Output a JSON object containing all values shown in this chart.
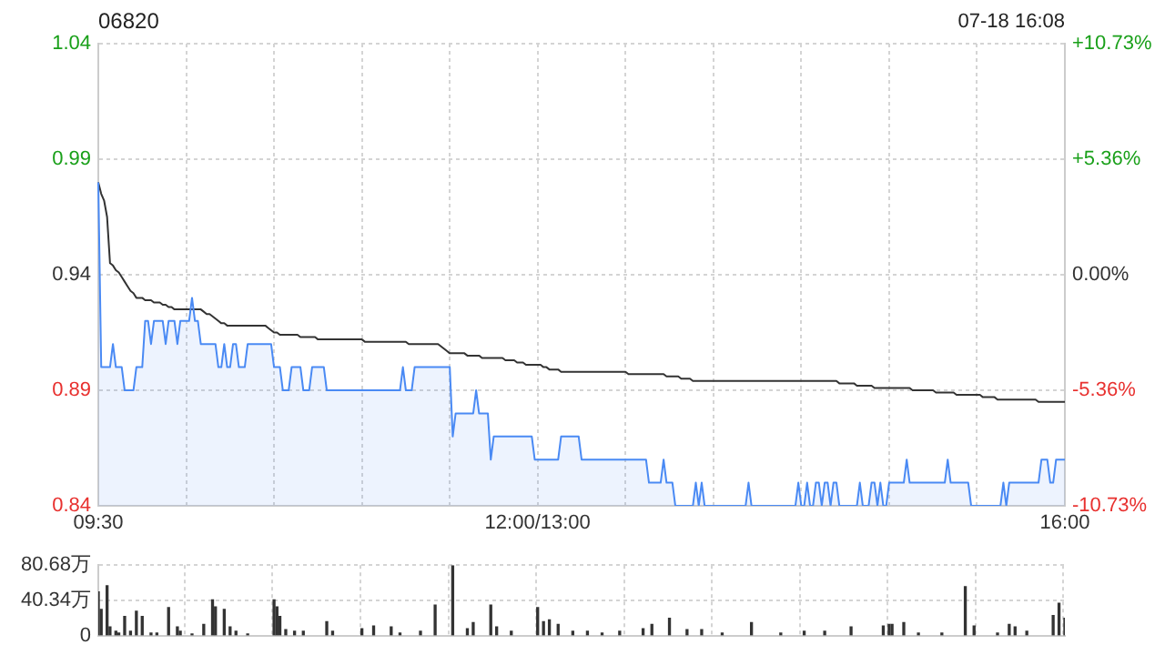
{
  "chart_data": [
    {
      "type": "line",
      "title": "06820",
      "annotations": [
        "07-18 16:08"
      ],
      "categories": [
        "09:30",
        null,
        null,
        null,
        null,
        null,
        null,
        null,
        null,
        null,
        null,
        null,
        null,
        null,
        null,
        null,
        null,
        null,
        null,
        null,
        null,
        null,
        null,
        null,
        null,
        null,
        null,
        null,
        null,
        null,
        null,
        null,
        null,
        null,
        null,
        null,
        null,
        null,
        null,
        null,
        null,
        null,
        null,
        null,
        null,
        null,
        null,
        null,
        null,
        null,
        null,
        null,
        null,
        null,
        null,
        null,
        null,
        null,
        null,
        null,
        null,
        null,
        null,
        null,
        null,
        null,
        null,
        null,
        null,
        null,
        null,
        null,
        null,
        null,
        null,
        null,
        null,
        null,
        null,
        null,
        null,
        null,
        null,
        null,
        null,
        null,
        null,
        null,
        null,
        null,
        null,
        null,
        null,
        null,
        null,
        null,
        null,
        null,
        null,
        null,
        null,
        null,
        null,
        null,
        null,
        null,
        null,
        null,
        null,
        null,
        null,
        null,
        null,
        null,
        null,
        null,
        null,
        null,
        null,
        null,
        null,
        null,
        null,
        null,
        null,
        null,
        null,
        null,
        null,
        null,
        null,
        null,
        null,
        null,
        null,
        null,
        null,
        null,
        null,
        null,
        null,
        null,
        null,
        null,
        null,
        null,
        null,
        null,
        null,
        null,
        "12:00/13:00",
        null,
        null,
        null,
        null,
        null,
        null,
        null,
        null,
        null,
        null,
        null,
        null,
        null,
        null,
        null,
        null,
        null,
        null,
        null,
        null,
        null,
        null,
        null,
        null,
        null,
        null,
        null,
        null,
        null,
        null,
        null,
        null,
        null,
        null,
        null,
        null,
        null,
        null,
        null,
        null,
        null,
        null,
        null,
        null,
        null,
        null,
        null,
        null,
        null,
        null,
        null,
        null,
        null,
        null,
        null,
        null,
        null,
        null,
        null,
        null,
        null,
        null,
        null,
        null,
        null,
        null,
        null,
        null,
        null,
        null,
        null,
        null,
        null,
        null,
        null,
        null,
        null,
        null,
        null,
        null,
        null,
        null,
        null,
        null,
        null,
        null,
        null,
        null,
        null,
        null,
        null,
        null,
        null,
        null,
        null,
        null,
        null,
        null,
        null,
        null,
        null,
        null,
        null,
        null,
        null,
        null,
        null,
        null,
        null,
        null,
        null,
        null,
        null,
        null,
        null,
        null,
        null,
        null,
        null,
        null,
        null,
        null,
        null,
        null,
        null,
        null,
        null,
        null,
        null,
        null,
        null,
        null,
        null,
        null,
        null,
        null,
        null,
        null,
        null,
        null,
        null,
        null,
        null,
        null,
        null,
        null,
        null,
        null,
        null,
        null,
        null,
        null,
        null,
        null,
        null,
        null,
        null,
        null,
        null,
        null,
        null,
        null,
        null,
        null,
        null,
        null,
        null,
        null,
        null,
        null,
        null,
        null,
        null,
        null,
        null,
        null,
        null,
        null,
        null,
        "16:00"
      ],
      "ylim": [
        0.84,
        1.04
      ],
      "yticks": [
        0.84,
        0.89,
        0.94,
        0.99,
        1.04
      ],
      "y2lim": [
        -10.73,
        10.73
      ],
      "y2ticks": [
        {
          "value": -10.73,
          "label": "-10.73%"
        },
        {
          "value": -5.36,
          "label": "-5.36%"
        },
        {
          "value": 0,
          "label": "0.00%"
        },
        {
          "value": 5.36,
          "label": "+5.36%"
        },
        {
          "value": 10.73,
          "label": "+10.73%"
        }
      ],
      "grid": true,
      "marker": "none",
      "line_style": "solid",
      "series": [
        {
          "type": "area",
          "color": "#4a8af4",
          "values": [
            0.98,
            0.9,
            0.9,
            0.9,
            0.9,
            0.91,
            0.9,
            0.9,
            0.9,
            0.89,
            0.89,
            0.89,
            0.89,
            0.9,
            0.9,
            0.9,
            0.92,
            0.92,
            0.91,
            0.92,
            0.92,
            0.92,
            0.92,
            0.91,
            0.92,
            0.92,
            0.92,
            0.91,
            0.92,
            0.92,
            0.92,
            0.92,
            0.93,
            0.92,
            0.92,
            0.91,
            0.91,
            0.91,
            0.91,
            0.91,
            0.91,
            0.9,
            0.9,
            0.91,
            0.9,
            0.9,
            0.91,
            0.91,
            0.9,
            0.9,
            0.9,
            0.91,
            0.91,
            0.91,
            0.91,
            0.91,
            0.91,
            0.91,
            0.91,
            0.91,
            0.9,
            0.9,
            0.9,
            0.89,
            0.89,
            0.89,
            0.9,
            0.9,
            0.9,
            0.9,
            0.89,
            0.89,
            0.89,
            0.9,
            0.9,
            0.9,
            0.9,
            0.9,
            0.89,
            0.89,
            0.89,
            0.89,
            0.89,
            0.89,
            0.89,
            0.89,
            0.89,
            0.89,
            0.89,
            0.89,
            0.89,
            0.89,
            0.89,
            0.89,
            0.89,
            0.89,
            0.89,
            0.89,
            0.89,
            0.89,
            0.89,
            0.89,
            0.89,
            0.89,
            0.9,
            0.89,
            0.89,
            0.89,
            0.9,
            0.9,
            0.9,
            0.9,
            0.9,
            0.9,
            0.9,
            0.9,
            0.9,
            0.9,
            0.9,
            0.9,
            0.9,
            0.87,
            0.88,
            0.88,
            0.88,
            0.88,
            0.88,
            0.88,
            0.88,
            0.89,
            0.88,
            0.88,
            0.88,
            0.88,
            0.86,
            0.87,
            0.87,
            0.87,
            0.87,
            0.87,
            0.87,
            0.87,
            0.87,
            0.87,
            0.87,
            0.87,
            0.87,
            0.87,
            0.87,
            0.86,
            0.86,
            0.86,
            0.86,
            0.86,
            0.86,
            0.86,
            0.86,
            0.86,
            0.87,
            0.87,
            0.87,
            0.87,
            0.87,
            0.87,
            0.87,
            0.86,
            0.86,
            0.86,
            0.86,
            0.86,
            0.86,
            0.86,
            0.86,
            0.86,
            0.86,
            0.86,
            0.86,
            0.86,
            0.86,
            0.86,
            0.86,
            0.86,
            0.86,
            0.86,
            0.86,
            0.86,
            0.86,
            0.86,
            0.85,
            0.85,
            0.85,
            0.85,
            0.85,
            0.86,
            0.85,
            0.85,
            0.85,
            0.84,
            0.84,
            0.84,
            0.84,
            0.84,
            0.84,
            0.84,
            0.85,
            0.84,
            0.85,
            0.84,
            0.84,
            0.84,
            0.84,
            0.84,
            0.84,
            0.84,
            0.84,
            0.84,
            0.84,
            0.84,
            0.84,
            0.84,
            0.84,
            0.84,
            0.85,
            0.84,
            0.84,
            0.84,
            0.84,
            0.84,
            0.84,
            0.84,
            0.84,
            0.84,
            0.84,
            0.84,
            0.84,
            0.84,
            0.84,
            0.84,
            0.84,
            0.85,
            0.84,
            0.84,
            0.85,
            0.84,
            0.84,
            0.85,
            0.85,
            0.84,
            0.85,
            0.85,
            0.84,
            0.85,
            0.85,
            0.84,
            0.84,
            0.84,
            0.84,
            0.84,
            0.84,
            0.84,
            0.85,
            0.84,
            0.84,
            0.84,
            0.85,
            0.85,
            0.84,
            0.85,
            0.84,
            0.84,
            0.85,
            0.85,
            0.85,
            0.85,
            0.85,
            0.85,
            0.86,
            0.85,
            0.85,
            0.85,
            0.85,
            0.85,
            0.85,
            0.85,
            0.85,
            0.85,
            0.85,
            0.85,
            0.85,
            0.85,
            0.86,
            0.85,
            0.85,
            0.85,
            0.85,
            0.85,
            0.85,
            0.85,
            0.84,
            0.84,
            0.84,
            0.84,
            0.84,
            0.84,
            0.84,
            0.84,
            0.84,
            0.84,
            0.84,
            0.85,
            0.84,
            0.85,
            0.85,
            0.85,
            0.85,
            0.85,
            0.85,
            0.85,
            0.85,
            0.85,
            0.85,
            0.85,
            0.86,
            0.86,
            0.86,
            0.85,
            0.85,
            0.86,
            0.86,
            0.86,
            0.86
          ]
        },
        {
          "type": "line",
          "color": "#333333",
          "values": [
            0.98,
            0.975,
            0.972,
            0.965,
            0.945,
            0.944,
            0.942,
            0.941,
            0.939,
            0.937,
            0.935,
            0.933,
            0.932,
            0.93,
            0.93,
            0.93,
            0.929,
            0.929,
            0.929,
            0.928,
            0.928,
            0.928,
            0.927,
            0.927,
            0.926,
            0.926,
            0.925,
            0.925,
            0.925,
            0.925,
            0.925,
            0.925,
            0.925,
            0.925,
            0.925,
            0.925,
            0.924,
            0.923,
            0.923,
            0.922,
            0.921,
            0.92,
            0.919,
            0.919,
            0.918,
            0.918,
            0.918,
            0.918,
            0.918,
            0.918,
            0.918,
            0.918,
            0.918,
            0.918,
            0.918,
            0.918,
            0.918,
            0.918,
            0.917,
            0.916,
            0.915,
            0.915,
            0.914,
            0.914,
            0.914,
            0.914,
            0.914,
            0.914,
            0.914,
            0.913,
            0.913,
            0.913,
            0.913,
            0.913,
            0.913,
            0.912,
            0.912,
            0.912,
            0.912,
            0.912,
            0.912,
            0.912,
            0.912,
            0.912,
            0.912,
            0.912,
            0.912,
            0.912,
            0.912,
            0.912,
            0.912,
            0.911,
            0.911,
            0.911,
            0.911,
            0.911,
            0.911,
            0.911,
            0.911,
            0.911,
            0.911,
            0.911,
            0.911,
            0.911,
            0.911,
            0.911,
            0.91,
            0.91,
            0.91,
            0.91,
            0.91,
            0.91,
            0.91,
            0.91,
            0.91,
            0.91,
            0.91,
            0.909,
            0.908,
            0.907,
            0.906,
            0.906,
            0.906,
            0.906,
            0.906,
            0.906,
            0.905,
            0.905,
            0.905,
            0.905,
            0.905,
            0.904,
            0.904,
            0.904,
            0.904,
            0.904,
            0.904,
            0.904,
            0.904,
            0.903,
            0.903,
            0.903,
            0.903,
            0.902,
            0.902,
            0.902,
            0.901,
            0.901,
            0.901,
            0.901,
            0.901,
            0.901,
            0.9,
            0.9,
            0.899,
            0.899,
            0.899,
            0.899,
            0.898,
            0.898,
            0.898,
            0.898,
            0.898,
            0.898,
            0.898,
            0.898,
            0.898,
            0.898,
            0.898,
            0.898,
            0.898,
            0.898,
            0.898,
            0.898,
            0.898,
            0.898,
            0.898,
            0.898,
            0.898,
            0.898,
            0.898,
            0.897,
            0.897,
            0.897,
            0.897,
            0.897,
            0.897,
            0.897,
            0.897,
            0.897,
            0.897,
            0.897,
            0.897,
            0.897,
            0.896,
            0.896,
            0.896,
            0.896,
            0.896,
            0.895,
            0.895,
            0.895,
            0.895,
            0.894,
            0.894,
            0.894,
            0.894,
            0.894,
            0.894,
            0.894,
            0.894,
            0.894,
            0.894,
            0.894,
            0.894,
            0.894,
            0.894,
            0.894,
            0.894,
            0.894,
            0.894,
            0.894,
            0.894,
            0.894,
            0.894,
            0.894,
            0.894,
            0.894,
            0.894,
            0.894,
            0.894,
            0.894,
            0.894,
            0.894,
            0.894,
            0.894,
            0.894,
            0.894,
            0.894,
            0.894,
            0.894,
            0.894,
            0.894,
            0.894,
            0.894,
            0.894,
            0.894,
            0.894,
            0.894,
            0.894,
            0.894,
            0.894,
            0.894,
            0.893,
            0.893,
            0.893,
            0.893,
            0.893,
            0.893,
            0.892,
            0.892,
            0.892,
            0.892,
            0.892,
            0.892,
            0.891,
            0.891,
            0.891,
            0.891,
            0.891,
            0.891,
            0.891,
            0.891,
            0.891,
            0.891,
            0.891,
            0.891,
            0.891,
            0.89,
            0.89,
            0.89,
            0.89,
            0.89,
            0.89,
            0.89,
            0.89,
            0.889,
            0.889,
            0.889,
            0.889,
            0.889,
            0.889,
            0.889,
            0.888,
            0.888,
            0.888,
            0.888,
            0.888,
            0.888,
            0.888,
            0.888,
            0.888,
            0.887,
            0.887,
            0.887,
            0.887,
            0.887,
            0.886,
            0.886,
            0.886,
            0.886,
            0.886,
            0.886,
            0.886,
            0.886,
            0.886,
            0.886,
            0.886,
            0.886,
            0.886,
            0.886,
            0.885,
            0.885,
            0.885,
            0.885,
            0.885,
            0.885,
            0.885,
            0.885,
            0.885,
            0.885
          ]
        }
      ]
    },
    {
      "type": "bar",
      "tick_labels": "y",
      "grid": true,
      "color": "#333333",
      "categories": [
        null,
        null,
        null,
        null,
        null,
        null,
        null,
        null,
        null,
        null,
        null,
        null,
        null,
        null,
        null,
        null,
        null,
        null,
        null,
        null,
        null,
        null,
        null,
        null,
        null,
        null,
        null,
        null,
        null,
        null,
        null,
        null,
        null,
        null,
        null,
        null,
        null,
        null,
        null,
        null,
        null,
        null,
        null,
        null,
        null,
        null,
        null,
        null,
        null,
        null,
        null,
        null,
        null,
        null,
        null,
        null,
        null,
        null,
        null,
        null,
        null,
        null,
        null,
        null,
        null,
        null,
        null,
        null,
        null,
        null,
        null,
        null,
        null,
        null,
        null,
        null,
        null,
        null,
        null,
        null,
        null,
        null,
        null,
        null,
        null,
        null,
        null,
        null,
        null,
        null,
        null,
        null,
        null,
        null,
        null,
        null,
        null,
        null,
        null,
        null,
        null,
        null,
        null,
        null,
        null,
        null,
        null,
        null,
        null,
        null,
        null,
        null,
        null,
        null,
        null,
        null,
        null,
        null,
        null,
        null,
        null,
        null,
        null,
        null,
        null,
        null,
        null,
        null,
        null,
        null,
        null,
        null,
        null,
        null,
        null,
        null,
        null,
        null,
        null,
        null,
        null,
        null,
        null,
        null,
        null,
        null,
        null,
        null,
        null,
        null,
        null,
        null,
        null,
        null,
        null,
        null,
        null,
        null,
        null,
        null,
        null,
        null,
        null,
        null,
        null,
        null,
        null,
        null,
        null,
        null,
        null,
        null,
        null,
        null,
        null,
        null,
        null,
        null,
        null,
        null,
        null,
        null,
        null,
        null,
        null,
        null,
        null,
        null,
        null,
        null,
        null,
        null,
        null,
        null,
        null,
        null,
        null,
        null,
        null,
        null,
        null,
        null,
        null,
        null,
        null,
        null,
        null,
        null,
        null,
        null,
        null,
        null,
        null,
        null,
        null,
        null,
        null,
        null,
        null,
        null,
        null,
        null,
        null,
        null,
        null,
        null,
        null,
        null,
        null,
        null,
        null,
        null,
        null,
        null,
        null,
        null,
        null,
        null,
        null,
        null,
        null,
        null,
        null,
        null,
        null,
        null,
        null,
        null,
        null,
        null,
        null,
        null,
        null,
        null,
        null,
        null,
        null,
        null,
        null,
        null,
        null,
        null,
        null,
        null,
        null,
        null,
        null,
        null,
        null,
        null,
        null,
        null,
        null,
        null,
        null,
        null,
        null,
        null,
        null,
        null,
        null,
        null,
        null,
        null,
        null,
        null,
        null,
        null,
        null,
        null,
        null,
        null,
        null,
        null,
        null,
        null,
        null,
        null,
        null,
        null,
        null,
        null,
        null,
        null,
        null,
        null,
        null,
        null,
        null,
        null,
        null,
        null,
        null,
        null,
        null,
        null,
        null,
        null,
        null,
        null,
        null,
        null,
        null,
        null,
        null,
        null,
        null,
        null,
        null,
        null,
        null
      ],
      "ylim": [
        0,
        80.68
      ],
      "yticks": [
        0,
        {
          "value": 40.34,
          "label": "40.34万"
        },
        {
          "value": 80.68,
          "label": "80.68万"
        }
      ],
      "values": [
        50,
        30,
        null,
        57,
        10,
        null,
        5,
        3,
        null,
        22,
        null,
        5,
        null,
        28,
        null,
        22,
        null,
        null,
        3,
        null,
        3,
        null,
        null,
        null,
        32,
        null,
        null,
        10,
        5,
        null,
        null,
        null,
        2,
        null,
        null,
        null,
        13,
        null,
        null,
        41,
        33,
        null,
        null,
        30,
        null,
        10,
        null,
        5,
        null,
        null,
        null,
        2,
        null,
        null,
        null,
        null,
        null,
        null,
        null,
        null,
        41,
        33,
        22,
        null,
        7,
        null,
        null,
        5,
        null,
        null,
        5,
        null,
        null,
        null,
        null,
        null,
        null,
        null,
        16,
        null,
        5,
        null,
        null,
        null,
        null,
        null,
        null,
        null,
        null,
        null,
        8,
        null,
        null,
        null,
        11,
        null,
        null,
        null,
        null,
        null,
        10,
        null,
        null,
        3,
        null,
        null,
        null,
        null,
        null,
        null,
        5,
        null,
        null,
        null,
        null,
        35,
        null,
        null,
        null,
        null,
        null,
        80,
        null,
        null,
        null,
        null,
        8,
        null,
        15,
        null,
        null,
        null,
        null,
        null,
        35,
        null,
        10,
        null,
        null,
        null,
        null,
        5,
        null,
        null,
        null,
        null,
        null,
        null,
        null,
        null,
        32,
        null,
        16,
        null,
        18,
        null,
        null,
        13,
        null,
        null,
        null,
        null,
        5,
        null,
        null,
        null,
        null,
        5,
        null,
        null,
        null,
        null,
        3,
        null,
        null,
        null,
        null,
        null,
        5,
        null,
        null,
        null,
        null,
        null,
        null,
        null,
        8,
        null,
        null,
        13,
        null,
        null,
        null,
        null,
        null,
        20,
        null,
        null,
        null,
        null,
        null,
        7,
        null,
        null,
        null,
        null,
        7,
        null,
        null,
        null,
        null,
        null,
        null,
        3,
        null,
        null,
        null,
        null,
        null,
        null,
        null,
        null,
        null,
        15,
        null,
        null,
        null,
        null,
        null,
        null,
        null,
        null,
        null,
        3,
        null,
        null,
        null,
        null,
        null,
        null,
        null,
        5,
        null,
        null,
        null,
        null,
        null,
        null,
        5,
        null,
        null,
        null,
        null,
        null,
        null,
        null,
        null,
        10,
        null,
        null,
        null,
        null,
        null,
        null,
        null,
        null,
        null,
        null,
        11,
        null,
        13,
        13,
        null,
        null,
        null,
        15,
        null,
        null,
        null,
        null,
        3,
        null,
        null,
        null,
        null,
        null,
        null,
        null,
        3,
        null,
        null,
        null,
        null,
        null,
        null,
        null,
        56,
        null,
        null,
        11,
        null,
        null,
        null,
        null,
        null,
        null,
        null,
        3,
        null,
        null,
        null,
        13,
        null,
        10,
        null,
        null,
        null,
        5,
        null,
        null,
        null,
        null,
        null,
        null,
        null,
        null,
        23,
        null,
        37,
        null,
        20
      ]
    }
  ]
}
